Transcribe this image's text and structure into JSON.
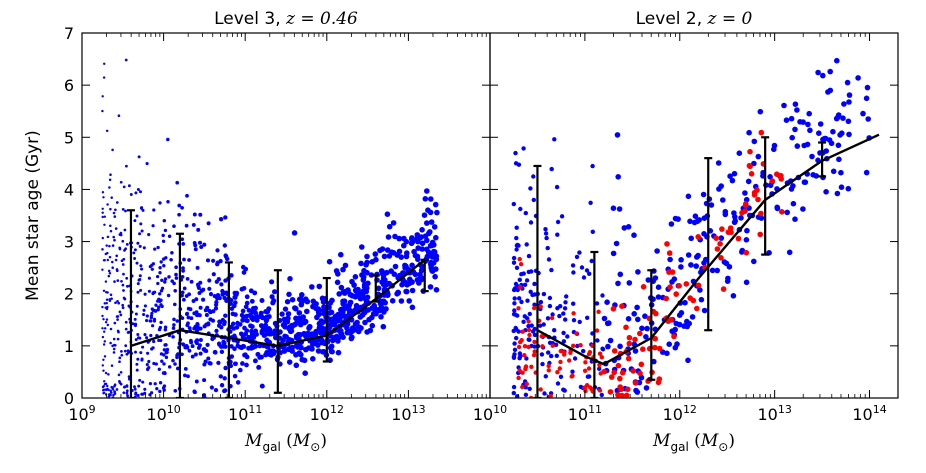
{
  "chart_data": {
    "type": "scatter",
    "ylabel": "Mean star age (Gyr)",
    "ylim": [
      0,
      7
    ],
    "yticks": [
      "0",
      "1",
      "2",
      "3",
      "4",
      "5",
      "6",
      "7"
    ],
    "colors": {
      "blue": "#0000ff",
      "red": "#ff0000",
      "line": "#000000"
    },
    "panels": [
      {
        "title_prefix": "Level 3,",
        "title_math": "z = 0.46",
        "xlabel_symbol": "M",
        "xlabel_sub": "gal",
        "xlabel_unit": "(M",
        "xlabel_unit_sub": "⊙",
        "xlabel_close": ")",
        "xscale": "log",
        "xlim_log10": [
          9,
          14
        ],
        "xticks": [
          {
            "base": "10",
            "exp": "9"
          },
          {
            "base": "10",
            "exp": "10"
          },
          {
            "base": "10",
            "exp": "11"
          },
          {
            "base": "10",
            "exp": "12"
          },
          {
            "base": "10",
            "exp": "13"
          }
        ],
        "median_line": {
          "log10_x": [
            9.6,
            10.2,
            10.8,
            11.4,
            12.0,
            12.6,
            13.2
          ],
          "y": [
            1.0,
            1.3,
            1.15,
            1.0,
            1.2,
            1.9,
            2.65
          ]
        },
        "error_bars": [
          {
            "log10_x": 9.6,
            "low": 0.0,
            "high": 3.6
          },
          {
            "log10_x": 10.2,
            "low": 0.0,
            "high": 3.15
          },
          {
            "log10_x": 10.8,
            "low": 0.0,
            "high": 2.6
          },
          {
            "log10_x": 11.4,
            "low": 0.1,
            "high": 2.45
          },
          {
            "log10_x": 12.0,
            "low": 0.7,
            "high": 2.3
          },
          {
            "log10_x": 12.6,
            "low": 1.85,
            "high": 2.35
          },
          {
            "log10_x": 13.2,
            "low": 2.05,
            "high": 2.65
          }
        ],
        "scatter_series": [
          {
            "name": "level3-galaxies",
            "color": "blue",
            "count": 1300,
            "log10_x_range": [
              9.25,
              13.35
            ]
          }
        ]
      },
      {
        "title_prefix": "Level 2,",
        "title_math": "z = 0",
        "xlabel_symbol": "M",
        "xlabel_sub": "gal",
        "xlabel_unit": "(M",
        "xlabel_unit_sub": "⊙",
        "xlabel_close": ")",
        "xscale": "log",
        "xlim_log10": [
          10,
          14.3
        ],
        "xticks": [
          {
            "base": "10",
            "exp": "10"
          },
          {
            "base": "10",
            "exp": "11"
          },
          {
            "base": "10",
            "exp": "12"
          },
          {
            "base": "10",
            "exp": "13"
          },
          {
            "base": "10",
            "exp": "14"
          }
        ],
        "median_line": {
          "log10_x": [
            10.5,
            11.0,
            11.2,
            11.7,
            12.2,
            12.9,
            13.5,
            14.1
          ],
          "y": [
            1.3,
            0.8,
            0.65,
            1.15,
            2.3,
            3.8,
            4.55,
            5.05
          ]
        },
        "error_bars": [
          {
            "log10_x": 10.5,
            "low": 0.0,
            "high": 4.45
          },
          {
            "log10_x": 11.1,
            "low": 0.0,
            "high": 2.8
          },
          {
            "log10_x": 11.7,
            "low": 0.35,
            "high": 2.45
          },
          {
            "log10_x": 12.3,
            "low": 1.3,
            "high": 4.6
          },
          {
            "log10_x": 12.9,
            "low": 2.75,
            "high": 5.0
          },
          {
            "log10_x": 13.5,
            "low": 4.25,
            "high": 4.9
          }
        ],
        "scatter_series": [
          {
            "name": "level2-blue-galaxies",
            "color": "blue",
            "count": 460,
            "log10_x_range": [
              10.25,
              14.0
            ]
          },
          {
            "name": "level2-red-galaxies",
            "color": "red",
            "count": 170,
            "log10_x_range": [
              10.3,
              13.1
            ]
          }
        ]
      }
    ]
  }
}
